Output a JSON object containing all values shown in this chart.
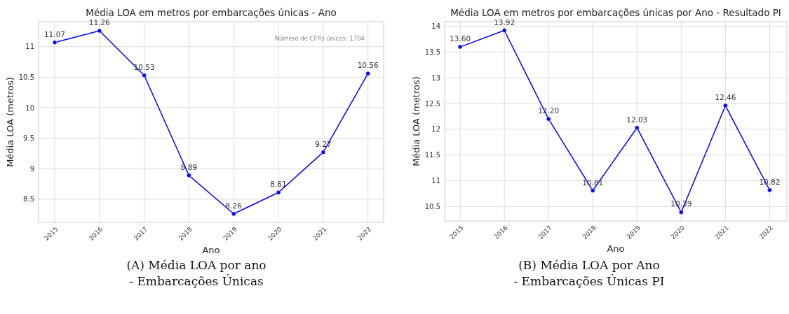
{
  "chart_data": [
    {
      "type": "line",
      "title": "Média LOA em metros por embarcações únicas - Ano",
      "xlabel": "Ano",
      "ylabel": "Média LOA (metros)",
      "x": [
        2015,
        2016,
        2017,
        2018,
        2019,
        2020,
        2021,
        2022
      ],
      "series": [
        {
          "color": "#0000ff",
          "values": [
            11.07,
            11.26,
            10.53,
            8.89,
            8.26,
            8.61,
            9.27,
            10.56
          ],
          "value_labels": [
            "11.07",
            "11.26",
            "10.53",
            "8.89",
            "8.26",
            "8.61",
            "9.27",
            "10.56"
          ]
        }
      ],
      "xlim": [
        2014.64,
        2022.35
      ],
      "xticks": [
        2015,
        2016,
        2017,
        2018,
        2019,
        2020,
        2021,
        2022
      ],
      "ylim": [
        8.12,
        11.41
      ],
      "yticks": [
        8.5,
        9.0,
        9.5,
        10.0,
        10.5,
        11.0
      ],
      "grid": true,
      "marker": "circle",
      "line_style": "solid",
      "annotations": [
        "Número de CFRs únicos: 1704",
        "(A) Média LOA por ano - Embarcações Únicas"
      ]
    },
    {
      "type": "line",
      "title": "Média LOA em metros por embarcações únicas por Ano - Resultado PI",
      "xlabel": "Ano",
      "ylabel": "Média LOA (metros)",
      "x": [
        2015,
        2016,
        2017,
        2018,
        2019,
        2020,
        2021,
        2022
      ],
      "series": [
        {
          "color": "#0000ff",
          "values": [
            13.6,
            13.92,
            12.2,
            10.81,
            12.03,
            10.39,
            12.46,
            10.82
          ],
          "value_labels": [
            "13.60",
            "13.92",
            "12.20",
            "10.81",
            "12.03",
            "10.39",
            "12.46",
            "10.82"
          ]
        }
      ],
      "xlim": [
        2014.65,
        2022.39
      ],
      "xticks": [
        2015,
        2016,
        2017,
        2018,
        2019,
        2020,
        2021,
        2022
      ],
      "ylim": [
        10.22,
        14.09
      ],
      "yticks": [
        10.5,
        11.0,
        11.5,
        12.0,
        12.5,
        13.0,
        13.5,
        14.0
      ],
      "grid": true,
      "marker": "circle",
      "line_style": "solid",
      "annotations": [
        "(B) Média LOA por Ano - Embarcações Únicas PI"
      ]
    }
  ]
}
